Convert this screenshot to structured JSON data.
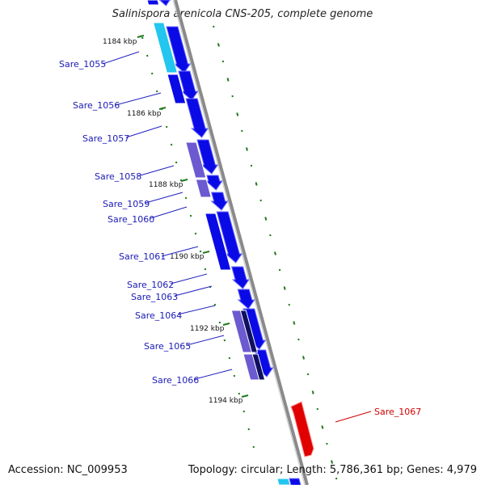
{
  "title": "Salinispora arenicola CNS-205, complete genome",
  "footer": {
    "accession": "Accession: NC_009953",
    "summary": "Topology: circular; Length: 5,786,361 bp; Genes: 4,979"
  },
  "kbp_labels": [
    "1184 kbp",
    "1186 kbp",
    "1188 kbp",
    "1190 kbp",
    "1192 kbp",
    "1194 kbp"
  ],
  "genes": [
    {
      "name": "Sare_1055",
      "color": "#1f1fd6"
    },
    {
      "name": "Sare_1056",
      "color": "#1f1fd6"
    },
    {
      "name": "Sare_1057",
      "color": "#1f1fd6"
    },
    {
      "name": "Sare_1058",
      "color": "#1f1fd6"
    },
    {
      "name": "Sare_1059",
      "color": "#1f1fd6"
    },
    {
      "name": "Sare_1060",
      "color": "#1f1fd6"
    },
    {
      "name": "Sare_1061",
      "color": "#1f1fd6"
    },
    {
      "name": "Sare_1062",
      "color": "#1f1fd6"
    },
    {
      "name": "Sare_1063",
      "color": "#1f1fd6"
    },
    {
      "name": "Sare_1064",
      "color": "#1f1fd6"
    },
    {
      "name": "Sare_1065",
      "color": "#1f1fd6"
    },
    {
      "name": "Sare_1066",
      "color": "#1f1fd6"
    },
    {
      "name": "Sare_1067",
      "color": "#e00000"
    }
  ],
  "colors": {
    "gene_forward": "#0a0ae6",
    "gene_reverse": "#0a0ae6",
    "gene_highlight": "#e00000",
    "cds_purple": "#6b5ad0",
    "cds_cyan": "#22c6ee",
    "backbone": "#888888",
    "ticks": "#1e7a1e"
  }
}
